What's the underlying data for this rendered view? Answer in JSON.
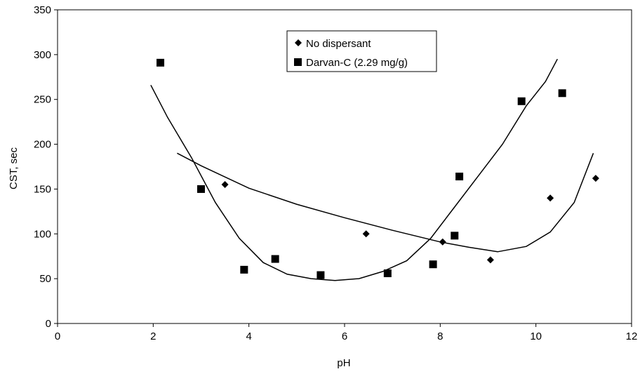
{
  "chart_data": {
    "type": "scatter",
    "title": "",
    "xlabel": "pH",
    "ylabel": "CST, sec",
    "xlim": [
      0,
      12
    ],
    "ylim": [
      0,
      350
    ],
    "x_ticks": [
      "0",
      "2",
      "4",
      "6",
      "8",
      "10",
      "12"
    ],
    "y_ticks": [
      "0",
      "50",
      "100",
      "150",
      "200",
      "250",
      "300",
      "350"
    ],
    "grid": false,
    "legend_position": "top-center",
    "series": [
      {
        "name": "No dispersant",
        "marker": "diamond",
        "color": "#000000",
        "points": [
          {
            "x": 3.5,
            "y": 155
          },
          {
            "x": 6.45,
            "y": 100
          },
          {
            "x": 8.05,
            "y": 91
          },
          {
            "x": 9.05,
            "y": 71
          },
          {
            "x": 10.3,
            "y": 140
          },
          {
            "x": 11.25,
            "y": 162
          }
        ],
        "trend": [
          {
            "x": 2.5,
            "y": 190
          },
          {
            "x": 3.0,
            "y": 176
          },
          {
            "x": 4.0,
            "y": 151
          },
          {
            "x": 5.0,
            "y": 133
          },
          {
            "x": 6.0,
            "y": 118
          },
          {
            "x": 7.0,
            "y": 104
          },
          {
            "x": 8.0,
            "y": 91
          },
          {
            "x": 8.6,
            "y": 85
          },
          {
            "x": 9.2,
            "y": 80
          },
          {
            "x": 9.8,
            "y": 86
          },
          {
            "x": 10.3,
            "y": 102
          },
          {
            "x": 10.8,
            "y": 135
          },
          {
            "x": 11.2,
            "y": 190
          }
        ]
      },
      {
        "name": "Darvan-C (2.29 mg/g)",
        "marker": "square",
        "color": "#000000",
        "points": [
          {
            "x": 2.15,
            "y": 291
          },
          {
            "x": 3.0,
            "y": 150
          },
          {
            "x": 3.9,
            "y": 60
          },
          {
            "x": 4.55,
            "y": 72
          },
          {
            "x": 5.5,
            "y": 54
          },
          {
            "x": 6.9,
            "y": 56
          },
          {
            "x": 7.85,
            "y": 66
          },
          {
            "x": 8.3,
            "y": 98
          },
          {
            "x": 8.4,
            "y": 164
          },
          {
            "x": 9.7,
            "y": 248
          },
          {
            "x": 10.55,
            "y": 257
          }
        ],
        "trend": [
          {
            "x": 1.95,
            "y": 266
          },
          {
            "x": 2.3,
            "y": 230
          },
          {
            "x": 2.8,
            "y": 185
          },
          {
            "x": 3.3,
            "y": 135
          },
          {
            "x": 3.8,
            "y": 95
          },
          {
            "x": 4.3,
            "y": 68
          },
          {
            "x": 4.8,
            "y": 55
          },
          {
            "x": 5.3,
            "y": 50
          },
          {
            "x": 5.8,
            "y": 48
          },
          {
            "x": 6.3,
            "y": 50
          },
          {
            "x": 6.8,
            "y": 58
          },
          {
            "x": 7.3,
            "y": 70
          },
          {
            "x": 7.8,
            "y": 95
          },
          {
            "x": 8.3,
            "y": 130
          },
          {
            "x": 8.8,
            "y": 165
          },
          {
            "x": 9.3,
            "y": 200
          },
          {
            "x": 9.8,
            "y": 243
          },
          {
            "x": 10.2,
            "y": 270
          },
          {
            "x": 10.45,
            "y": 295
          }
        ]
      }
    ]
  }
}
